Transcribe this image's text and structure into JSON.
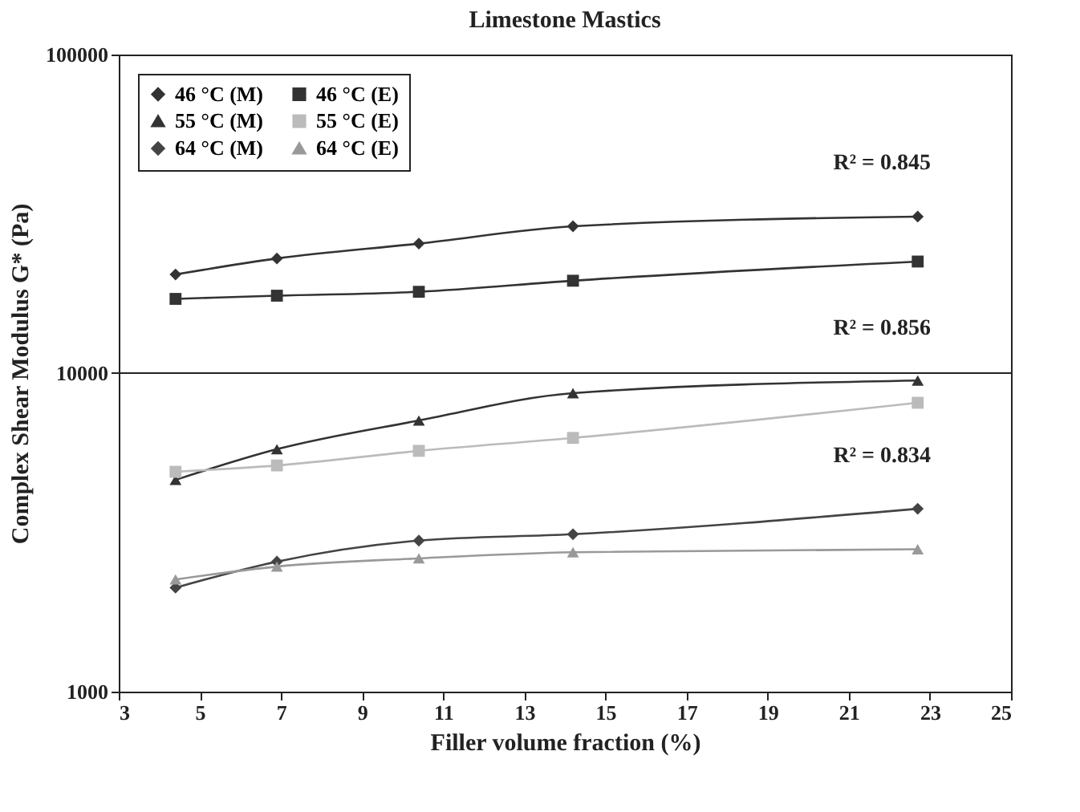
{
  "chart_data": {
    "type": "line",
    "title": "Limestone Mastics",
    "xlabel": "Filler volume fraction (%)",
    "ylabel": "Complex Shear Modulus G* (Pa)",
    "x": [
      4.4,
      6.9,
      10.4,
      14.2,
      22.7
    ],
    "series": [
      {
        "name": "46 °C (M)",
        "color": "#333333",
        "marker": "diamond",
        "values": [
          20400,
          22900,
          25500,
          28900,
          31000
        ]
      },
      {
        "name": "46 °C (E)",
        "color": "#333333",
        "marker": "square",
        "values": [
          17100,
          17500,
          18000,
          19500,
          22400
        ]
      },
      {
        "name": "55 °C (M)",
        "color": "#333333",
        "marker": "triangle",
        "values": [
          4620,
          5770,
          7100,
          8650,
          9480
        ]
      },
      {
        "name": "55 °C (E)",
        "color": "#bbbbbb",
        "marker": "square",
        "values": [
          4900,
          5130,
          5700,
          6260,
          8070
        ]
      },
      {
        "name": "64 °C (M)",
        "color": "#444444",
        "marker": "diamond",
        "values": [
          2120,
          2560,
          2980,
          3120,
          3750
        ]
      },
      {
        "name": "64 °C (E)",
        "color": "#999999",
        "marker": "triangle",
        "values": [
          2250,
          2470,
          2620,
          2740,
          2800
        ]
      }
    ],
    "annotations": [
      "R² = 0.845",
      "R² = 0.856",
      "R² = 0.834"
    ],
    "xlim": [
      3,
      25
    ],
    "xticks": [
      3,
      5,
      7,
      9,
      11,
      13,
      15,
      17,
      19,
      21,
      23,
      25
    ],
    "ylim": [
      1000,
      100000
    ],
    "yticks": [
      1000,
      10000,
      100000
    ],
    "log": "y",
    "grid": "y",
    "legend": "top left",
    "line_style": "solid"
  }
}
